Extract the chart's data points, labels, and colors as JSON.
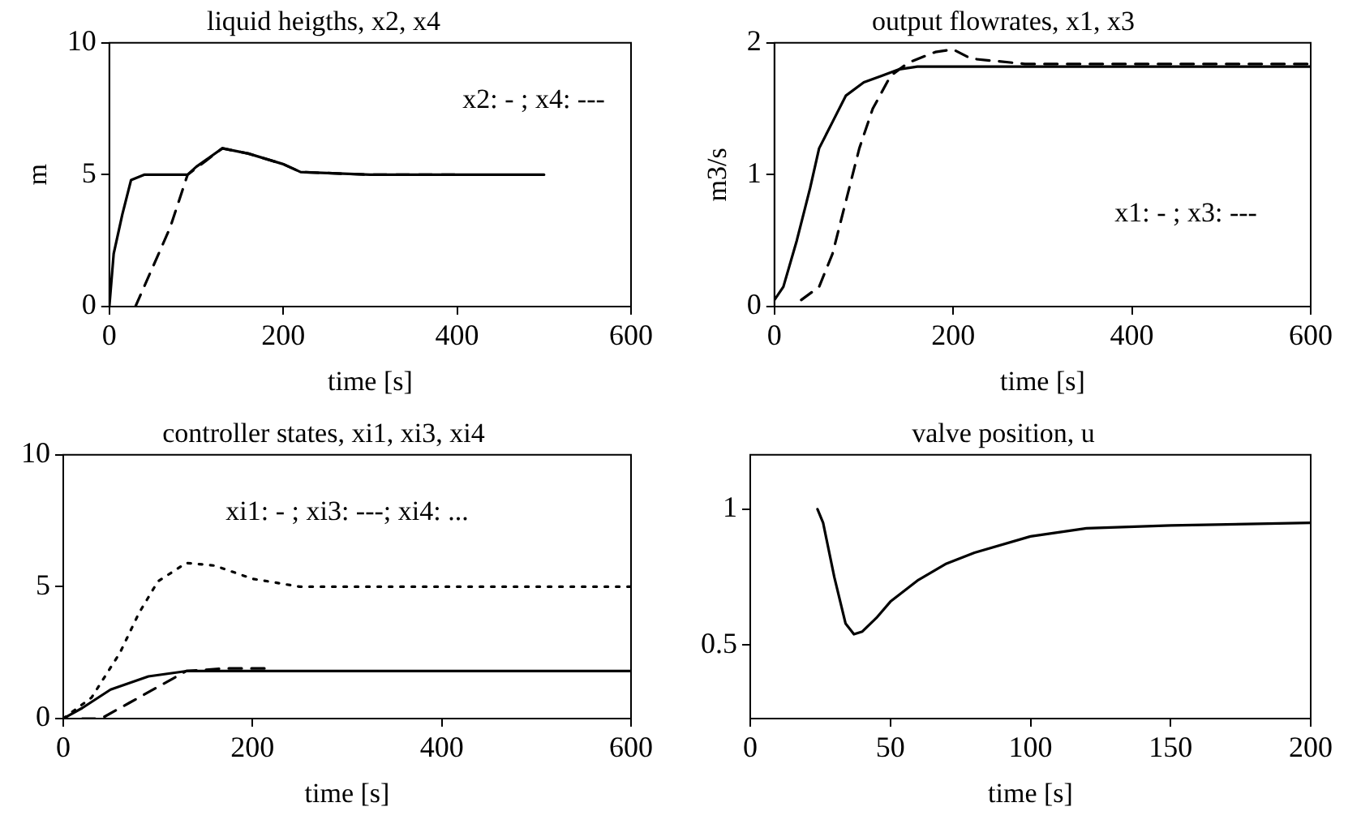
{
  "chart_data": [
    {
      "type": "line",
      "title": "liquid heigths, x2, x4",
      "xlabel": "time [s]",
      "ylabel": "m",
      "xlim": [
        0,
        600
      ],
      "xticks": [
        0,
        200,
        400,
        600
      ],
      "ylim": [
        0,
        10
      ],
      "yticks": [
        0,
        5,
        10
      ],
      "grid": false,
      "legend": false,
      "annotations": [
        "x2: - ; x4: ---"
      ],
      "series": [
        {
          "color": "#000000",
          "line_style": "solid",
          "x": [
            0,
            5,
            15,
            25,
            40,
            90,
            100,
            130,
            160,
            200,
            220,
            300,
            500
          ],
          "values": [
            0,
            2,
            3.5,
            4.8,
            5,
            5,
            5.3,
            6,
            5.8,
            5.4,
            5.1,
            5,
            5
          ]
        },
        {
          "color": "#000000",
          "line_style": "dashed",
          "x": [
            30,
            50,
            70,
            90,
            130,
            160,
            200,
            220,
            300,
            400
          ],
          "values": [
            0,
            1.5,
            3,
            5,
            6,
            5.8,
            5.4,
            5.1,
            5,
            5
          ]
        }
      ]
    },
    {
      "type": "line",
      "title": "output flowrates, x1, x3",
      "xlabel": "time [s]",
      "ylabel": "m3/s",
      "xlim": [
        0,
        600
      ],
      "xticks": [
        0,
        200,
        400,
        600
      ],
      "ylim": [
        0,
        2
      ],
      "yticks": [
        0,
        1,
        2
      ],
      "grid": false,
      "legend": false,
      "annotations": [
        "x1: - ; x3: ---"
      ],
      "series": [
        {
          "color": "#000000",
          "line_style": "solid",
          "x": [
            0,
            10,
            25,
            40,
            50,
            65,
            80,
            100,
            120,
            140,
            160,
            600
          ],
          "values": [
            0.05,
            0.15,
            0.5,
            0.9,
            1.2,
            1.4,
            1.6,
            1.7,
            1.75,
            1.8,
            1.82,
            1.82
          ]
        },
        {
          "color": "#000000",
          "line_style": "dashed",
          "x": [
            30,
            50,
            65,
            80,
            95,
            110,
            130,
            150,
            180,
            200,
            220,
            280,
            600
          ],
          "values": [
            0.05,
            0.15,
            0.4,
            0.8,
            1.2,
            1.5,
            1.75,
            1.85,
            1.93,
            1.95,
            1.88,
            1.84,
            1.84
          ]
        }
      ]
    },
    {
      "type": "line",
      "title": "controller states, xi1, xi3, xi4",
      "xlabel": "time [s]",
      "xlim": [
        0,
        600
      ],
      "xticks": [
        0,
        200,
        400,
        600
      ],
      "ylim": [
        0,
        10
      ],
      "yticks": [
        0,
        5,
        10
      ],
      "grid": false,
      "legend": false,
      "annotations": [
        "xi1: - ; xi3: ---; xi4: ..."
      ],
      "series": [
        {
          "color": "#000000",
          "line_style": "solid",
          "x": [
            0,
            20,
            50,
            90,
            130,
            600
          ],
          "values": [
            0,
            0.4,
            1.1,
            1.6,
            1.8,
            1.8
          ]
        },
        {
          "color": "#000000",
          "line_style": "dashed",
          "x": [
            20,
            40,
            70,
            100,
            130,
            170,
            220
          ],
          "values": [
            0,
            0,
            0.6,
            1.2,
            1.8,
            1.9,
            1.9
          ]
        },
        {
          "color": "#000000",
          "line_style": "dotted",
          "x": [
            0,
            30,
            60,
            80,
            100,
            130,
            160,
            200,
            250,
            600
          ],
          "values": [
            0,
            0.8,
            2.5,
            4,
            5.2,
            5.9,
            5.8,
            5.3,
            5,
            5
          ]
        }
      ]
    },
    {
      "type": "line",
      "title": "valve position, u",
      "xlabel": "time [s]",
      "xlim": [
        0,
        200
      ],
      "xticks": [
        0,
        50,
        100,
        150,
        200
      ],
      "ylim": [
        0.23,
        1.2
      ],
      "yticks": [
        0.5,
        1
      ],
      "grid": false,
      "legend": false,
      "series": [
        {
          "color": "#000000",
          "line_style": "solid",
          "x": [
            24,
            26,
            30,
            34,
            37,
            40,
            45,
            50,
            60,
            70,
            80,
            100,
            120,
            150,
            200
          ],
          "values": [
            1,
            0.95,
            0.75,
            0.58,
            0.54,
            0.55,
            0.6,
            0.66,
            0.74,
            0.8,
            0.84,
            0.9,
            0.93,
            0.94,
            0.95
          ]
        }
      ]
    }
  ]
}
